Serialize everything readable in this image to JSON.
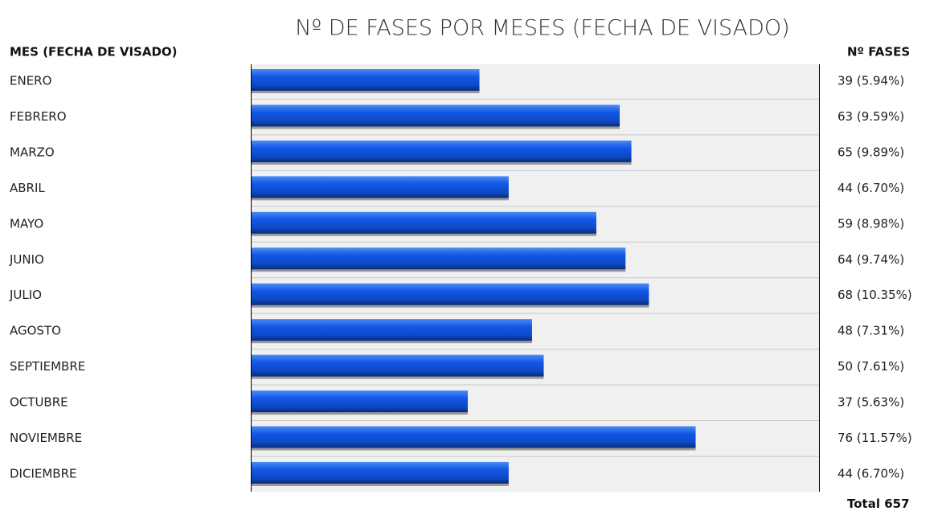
{
  "chart_data": {
    "type": "bar",
    "orientation": "horizontal",
    "title": "Nº DE FASES POR MESES (FECHA DE VISADO)",
    "category_header": "MES (FECHA DE VISADO)",
    "value_header": "Nº FASES",
    "categories": [
      "ENERO",
      "FEBRERO",
      "MARZO",
      "ABRIL",
      "MAYO",
      "JUNIO",
      "JULIO",
      "AGOSTO",
      "SEPTIEMBRE",
      "OCTUBRE",
      "NOVIEMBRE",
      "DICIEMBRE"
    ],
    "values": [
      39,
      63,
      65,
      44,
      59,
      64,
      68,
      48,
      50,
      37,
      76,
      44
    ],
    "value_labels": [
      "39 (5.94%)",
      "63 (9.59%)",
      "65 (9.89%)",
      "44 (6.70%)",
      "59 (8.98%)",
      "64 (9.74%)",
      "68 (10.35%)",
      "48 (7.31%)",
      "50 (7.61%)",
      "37 (5.63%)",
      "76 (11.57%)",
      "44 (6.70%)"
    ],
    "color": "#1257e6",
    "total": {
      "label": "Total",
      "value": 657
    }
  }
}
